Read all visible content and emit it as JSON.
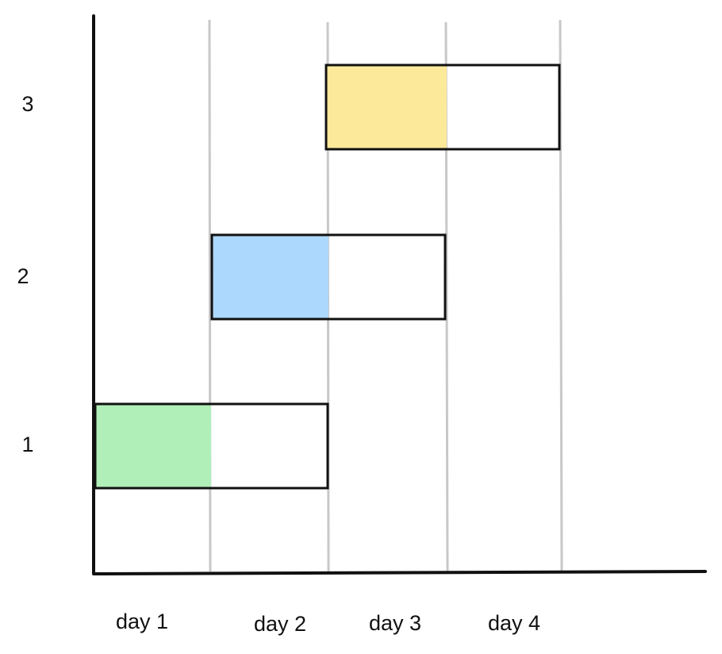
{
  "rows": [
    {
      "label": "1"
    },
    {
      "label": "2"
    },
    {
      "label": "3"
    }
  ],
  "days": [
    "day 1",
    "day 2",
    "day 3",
    "day 4"
  ]
}
